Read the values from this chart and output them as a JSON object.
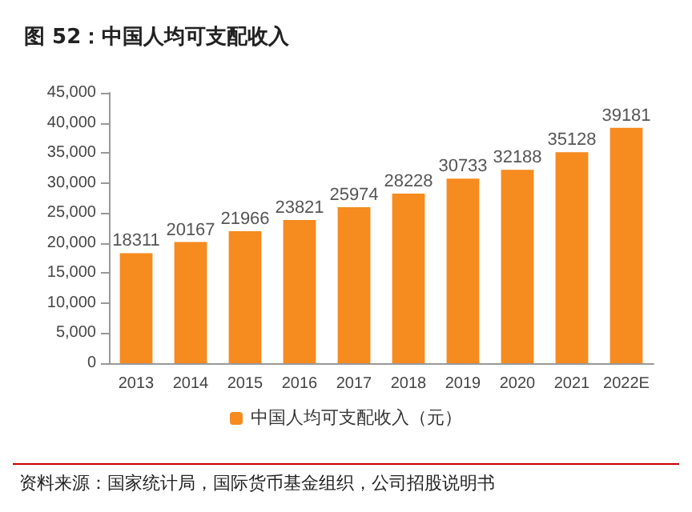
{
  "chart_data": {
    "type": "bar",
    "title": "图 52：中国人均可支配收入",
    "categories": [
      "2013",
      "2014",
      "2015",
      "2016",
      "2017",
      "2018",
      "2019",
      "2020",
      "2021",
      "2022E"
    ],
    "series": [
      {
        "name": "中国人均可支配收入（元）",
        "color": "#f68b1f",
        "values": [
          18311,
          20167,
          21966,
          23821,
          25974,
          28228,
          30733,
          32188,
          35128,
          39181
        ]
      }
    ],
    "ylim": [
      0,
      45000
    ],
    "yticks": [
      0,
      {
        "value": 5000,
        "label": "5,000"
      },
      {
        "value": 10000,
        "label": "10,000"
      },
      {
        "value": 15000,
        "label": "15,000"
      },
      {
        "value": 20000,
        "label": "20,000"
      },
      {
        "value": 25000,
        "label": "25,000"
      },
      {
        "value": 30000,
        "label": "30,000"
      },
      {
        "value": 35000,
        "label": "35,000"
      },
      {
        "value": 40000,
        "label": "40,000"
      },
      {
        "value": 45000,
        "label": "45,000"
      }
    ],
    "grid": false,
    "legend": "bottom",
    "data_labels": true,
    "annotations": [
      "资料来源：国家统计局，国际货币基金组织，公司招股说明书"
    ]
  }
}
